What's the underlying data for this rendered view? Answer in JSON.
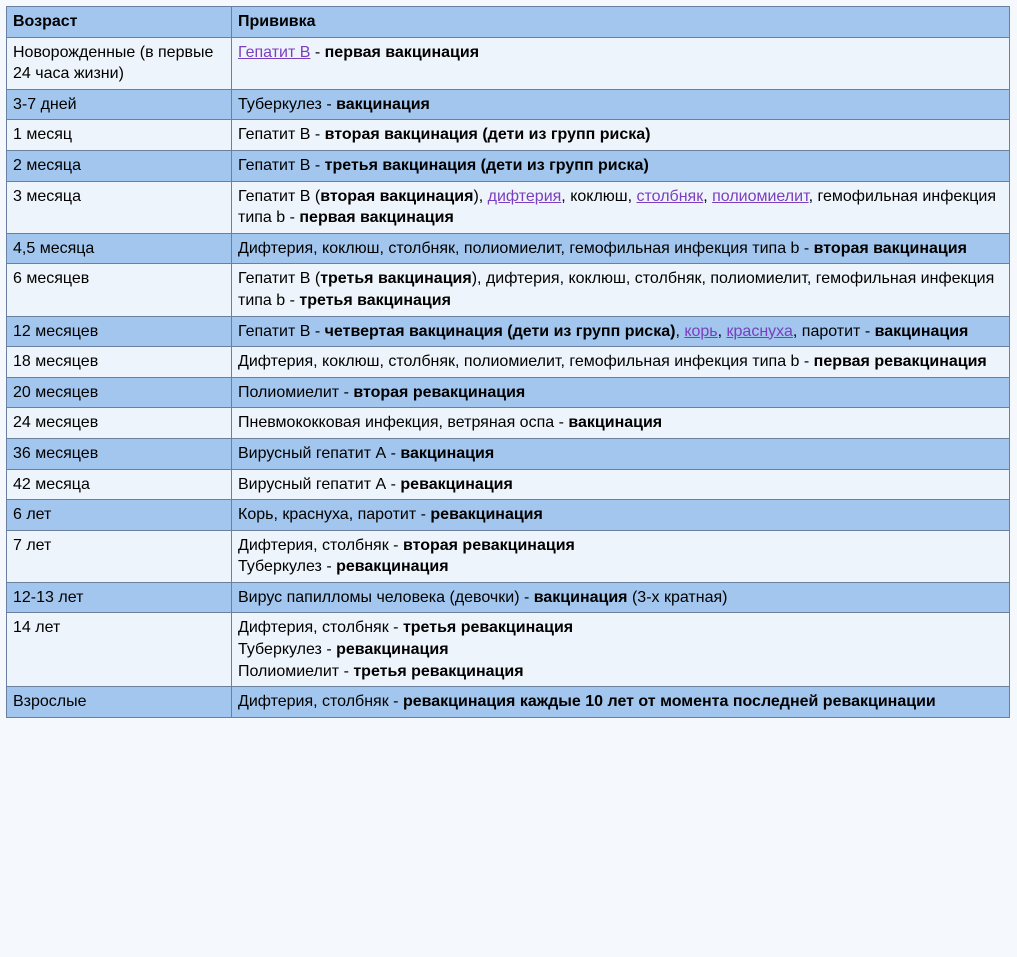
{
  "table": {
    "header": {
      "age": "Возраст",
      "vaccine": "Прививка"
    },
    "colors": {
      "blue": "#a2c6ed",
      "light": "#eef4fb",
      "border": "#6b7fa0",
      "link": "#7a3fbf",
      "text": "#000000"
    },
    "rows": [
      {
        "band": "light",
        "age": "Новорожденные (в первые 24 часа жизни)",
        "vaccine_html": "<a class=\"term\" href=\"#\">Гепатит В</a> - <b>первая вакцинация</b>"
      },
      {
        "band": "blue",
        "age": "3-7 дней",
        "vaccine_html": "Туберкулез - <b>вакцинация</b>"
      },
      {
        "band": "light",
        "age": "1 месяц",
        "vaccine_html": "Гепатит В - <b>вторая вакцинация (дети из групп риска)</b>"
      },
      {
        "band": "blue",
        "age": "2 месяца",
        "vaccine_html": "Гепатит В - <b>третья вакцинация (дети из групп риска)</b>"
      },
      {
        "band": "light",
        "age": "3 месяца",
        "vaccine_html": "Гепатит В (<b>вторая вакцинация</b>), <a class=\"term\" href=\"#\">дифтерия</a>, коклюш, <a class=\"term\" href=\"#\">столбняк</a>, <a class=\"term\" href=\"#\">полиомиелит</a>, гемофильная инфекция типа b - <b>первая вакцинация</b>"
      },
      {
        "band": "blue",
        "age": "4,5 месяца",
        "vaccine_html": "Дифтерия, коклюш, столбняк, полиомиелит, гемофильная инфекция типа b - <b>вторая вакцинация</b>"
      },
      {
        "band": "light",
        "age": "6 месяцев",
        "vaccine_html": "Гепатит В (<b>третья вакцинация</b>), дифтерия, коклюш, столбняк, полиомиелит, гемофильная инфекция типа b - <b>третья вакцинация</b>"
      },
      {
        "band": "blue",
        "age": "12 месяцев",
        "vaccine_html": "Гепатит В - <b>четвертая вакцинация (дети из групп риска)</b>, <a class=\"term\" href=\"#\">корь</a>, <a class=\"term\" href=\"#\">краснуха</a>, паротит - <b>вакцинация</b>"
      },
      {
        "band": "light",
        "age": "18 месяцев",
        "vaccine_html": "Дифтерия, коклюш, столбняк, полиомиелит, гемофильная инфекция типа b - <b>первая ревакцинация</b>"
      },
      {
        "band": "blue",
        "age": "20 месяцев",
        "vaccine_html": "Полиомиелит - <b>вторая ревакцинация</b>"
      },
      {
        "band": "light",
        "age": "24 месяцев",
        "vaccine_html": "Пневмококковая инфекция, ветряная оспа - <b>вакцинация</b>"
      },
      {
        "band": "blue",
        "age": "36 месяцев",
        "vaccine_html": "Вирусный гепатит А - <b>вакцинация</b>"
      },
      {
        "band": "light",
        "age": "42 месяца",
        "vaccine_html": "Вирусный гепатит А - <b>ревакцинация</b>"
      },
      {
        "band": "blue",
        "age": "6 лет",
        "vaccine_html": "Корь, краснуха, паротит - <b>ревакцинация</b>"
      },
      {
        "band": "light",
        "age": "7 лет",
        "vaccine_html": "Дифтерия, столбняк - <b>вторая ревакцинация</b><br>Туберкулез - <b>ревакцинация</b>"
      },
      {
        "band": "blue",
        "age": "12-13 лет",
        "vaccine_html": "Вирус папилломы человека (девочки) - <b>вакцинация</b> (3-х кратная)"
      },
      {
        "band": "light",
        "age": "14 лет",
        "vaccine_html": "Дифтерия, столбняк - <b>третья ревакцинация</b><br>Туберкулез - <b>ревакцинация</b><br>Полиомиелит - <b>третья ревакцинация</b>"
      },
      {
        "band": "blue",
        "age": "Взрослые",
        "vaccine_html": "Дифтерия, столбняк - <b>ревакцинация каждые 10 лет от момента последней ревакцинации</b>"
      }
    ]
  }
}
